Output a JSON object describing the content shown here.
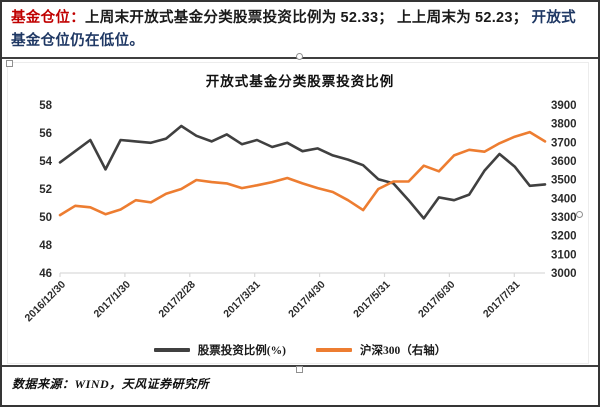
{
  "header": {
    "segments": [
      {
        "text": "基金仓位："
      },
      {
        "text": "上周末开放式基金分类股票投资比例为 "
      },
      {
        "text": "52.33"
      },
      {
        "text": "； 上上周末为 "
      },
      {
        "text": "52.23"
      },
      {
        "text": "； "
      },
      {
        "text": "开放式基金仓位仍在低位。"
      }
    ],
    "colors": {
      "highlight": "#C00000",
      "body": "#1A1A1A",
      "emphasis": "#1F3864"
    }
  },
  "chart_data": {
    "type": "line",
    "title": "开放式基金分类股票投资比例",
    "grid": false,
    "legend_position": "bottom",
    "x_tick_labels": [
      "2016/12/30",
      "2017/1/30",
      "2017/2/28",
      "2017/3/31",
      "2017/4/30",
      "2017/5/31",
      "2017/6/30",
      "2017/7/31"
    ],
    "x_dates": [
      "2016/12/30",
      "2017/1/6",
      "2017/1/13",
      "2017/1/20",
      "2017/1/26",
      "2017/2/3",
      "2017/2/10",
      "2017/2/17",
      "2017/2/24",
      "2017/3/3",
      "2017/3/10",
      "2017/3/17",
      "2017/3/24",
      "2017/3/31",
      "2017/4/7",
      "2017/4/14",
      "2017/4/21",
      "2017/4/28",
      "2017/5/5",
      "2017/5/12",
      "2017/5/19",
      "2017/5/26",
      "2017/6/2",
      "2017/6/9",
      "2017/6/16",
      "2017/6/23",
      "2017/6/30",
      "2017/7/7",
      "2017/7/14",
      "2017/7/21",
      "2017/7/28",
      "2017/8/4",
      "2017/8/11"
    ],
    "y_left": {
      "min": 46,
      "max": 58,
      "ticks": [
        58,
        56,
        54,
        52,
        50,
        48,
        46
      ]
    },
    "y_right": {
      "min": 3000,
      "max": 3900,
      "ticks": [
        3900,
        3800,
        3700,
        3600,
        3500,
        3400,
        3300,
        3200,
        3100,
        3000
      ]
    },
    "series": [
      {
        "name": "股票投资比例(%)",
        "axis": "left",
        "color": "#404040",
        "values": [
          53.9,
          54.7,
          55.5,
          53.4,
          55.5,
          55.4,
          55.3,
          55.6,
          56.5,
          55.8,
          55.4,
          55.9,
          55.2,
          55.5,
          55.0,
          55.3,
          54.7,
          54.9,
          54.4,
          54.1,
          53.7,
          52.7,
          52.4,
          51.2,
          49.9,
          51.4,
          51.2,
          51.6,
          53.3,
          54.5,
          53.6,
          52.23,
          52.33
        ]
      },
      {
        "name": "沪深300（右轴）",
        "axis": "right",
        "color": "#ED7D31",
        "values": [
          3310,
          3360,
          3352,
          3315,
          3340,
          3390,
          3378,
          3425,
          3450,
          3498,
          3487,
          3480,
          3455,
          3470,
          3487,
          3509,
          3480,
          3455,
          3434,
          3390,
          3337,
          3450,
          3490,
          3490,
          3575,
          3545,
          3630,
          3660,
          3650,
          3695,
          3730,
          3755,
          3705
        ]
      }
    ],
    "axis_color": "#D9D9D9",
    "tick_label_color": "#2B2B2B"
  },
  "footer": {
    "source": "数据来源：WIND，天风证券研究所"
  }
}
